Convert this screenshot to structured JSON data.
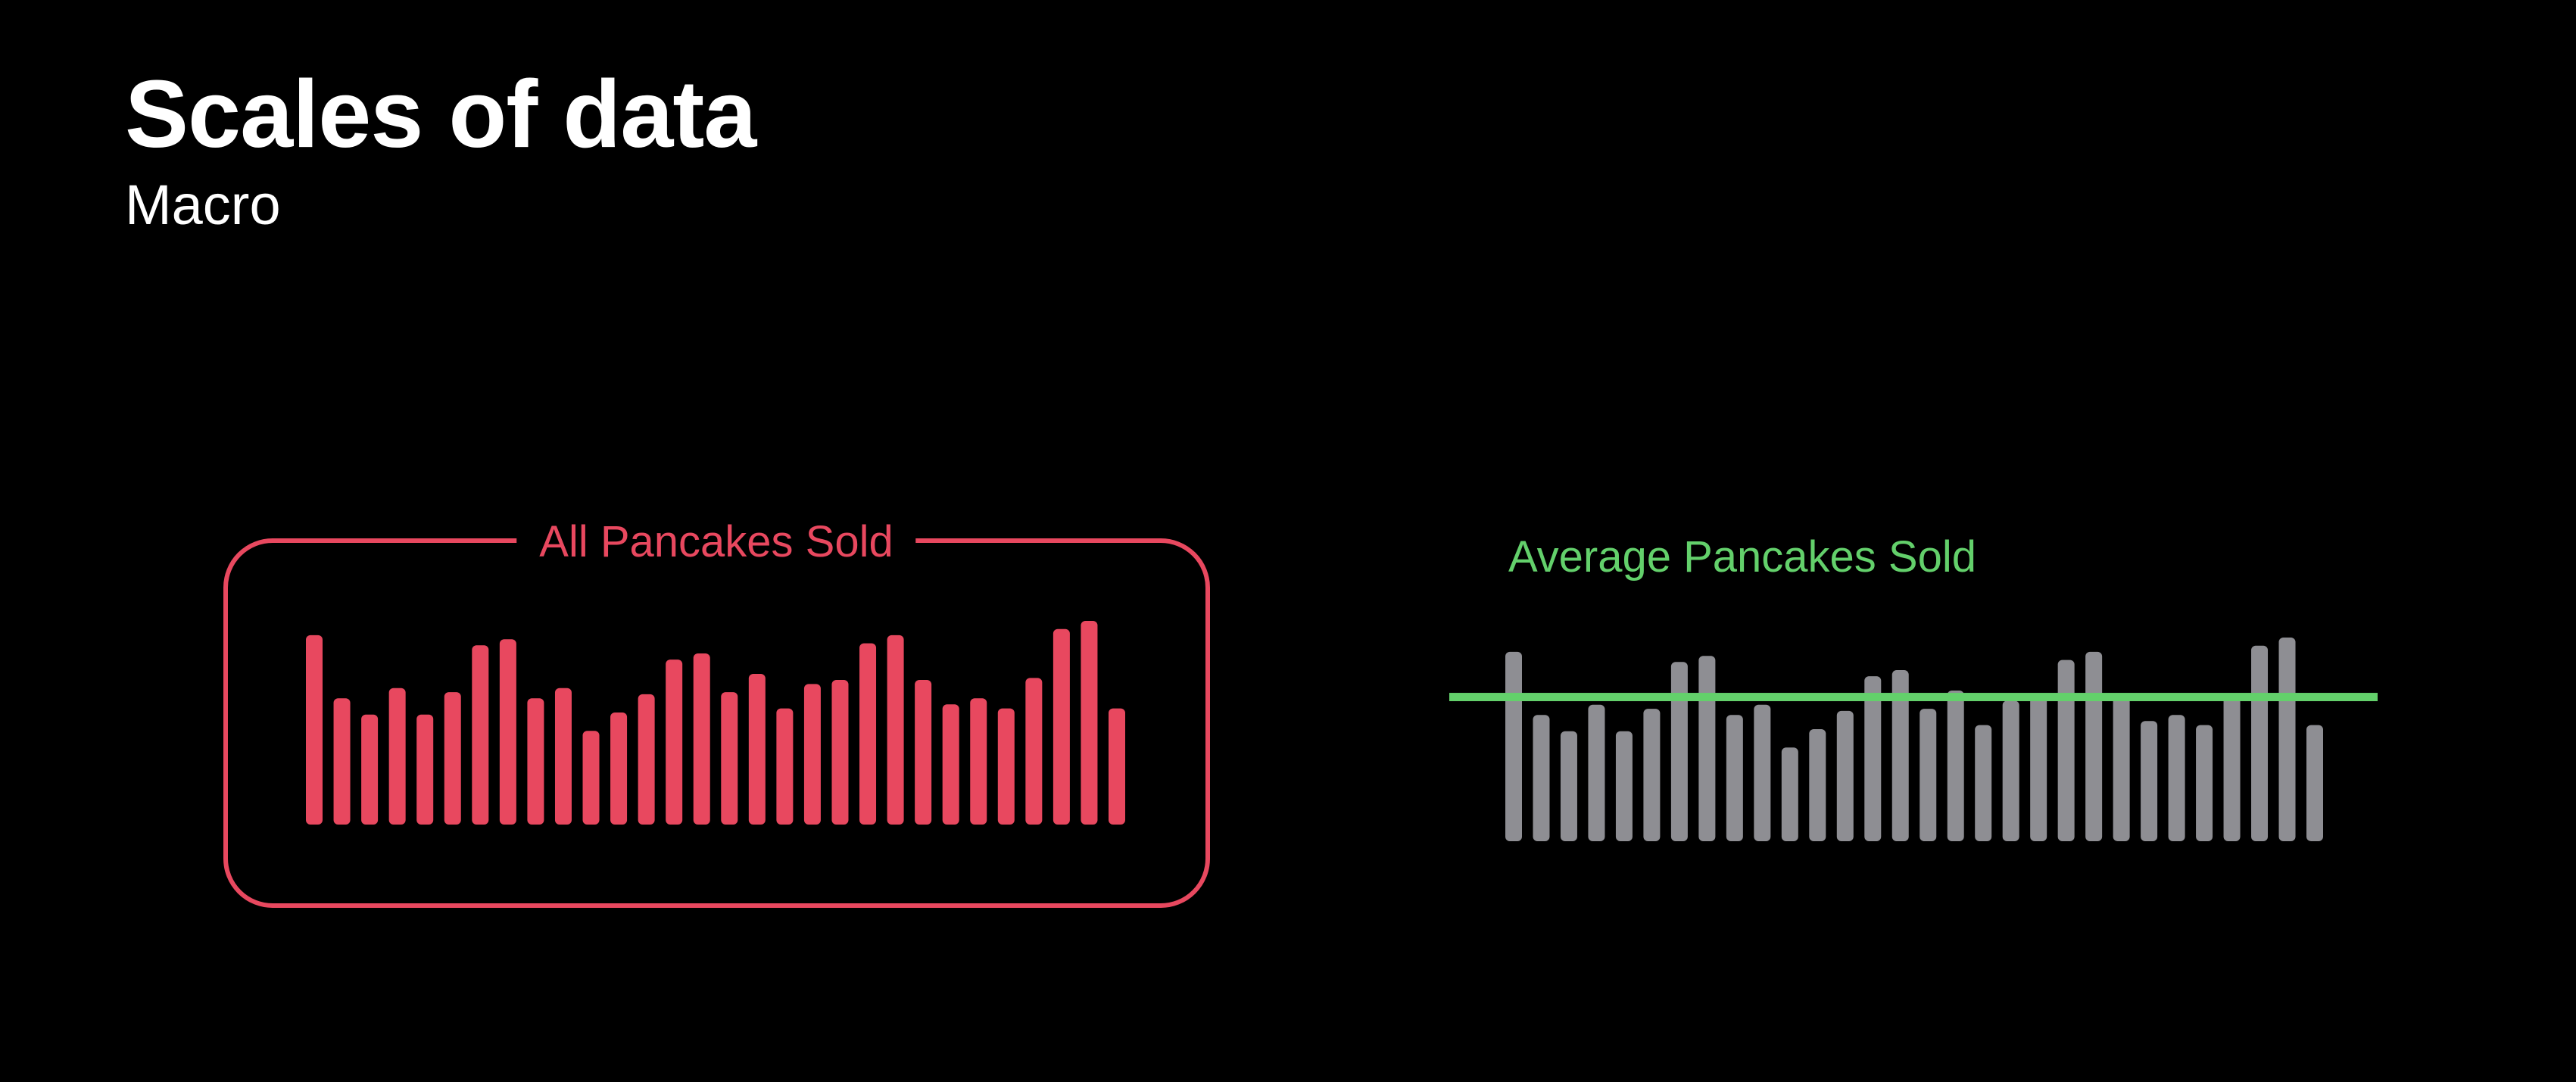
{
  "header": {
    "title": "Scales of data",
    "subtitle": "Macro"
  },
  "colors": {
    "background": "#000000",
    "all_bars": "#e8485f",
    "avg_bars": "#8e8e93",
    "average_line": "#63d06b"
  },
  "chart_data": [
    {
      "type": "bar",
      "title": "All Pancakes Sold",
      "values": [
        93,
        62,
        54,
        67,
        54,
        65,
        88,
        91,
        62,
        67,
        46,
        55,
        64,
        81,
        84,
        65,
        74,
        57,
        69,
        71,
        89,
        93,
        71,
        59,
        62,
        57,
        72,
        96,
        100,
        57
      ],
      "ylim": [
        0,
        100
      ],
      "highlight": "bordered box"
    },
    {
      "type": "bar",
      "title": "Average Pancakes Sold",
      "values": [
        93,
        62,
        54,
        67,
        54,
        65,
        88,
        91,
        62,
        67,
        46,
        55,
        64,
        81,
        84,
        65,
        74,
        57,
        69,
        71,
        89,
        93,
        71,
        59,
        62,
        57,
        72,
        96,
        100,
        57
      ],
      "average": 70.8,
      "ylim": [
        0,
        100
      ]
    }
  ]
}
